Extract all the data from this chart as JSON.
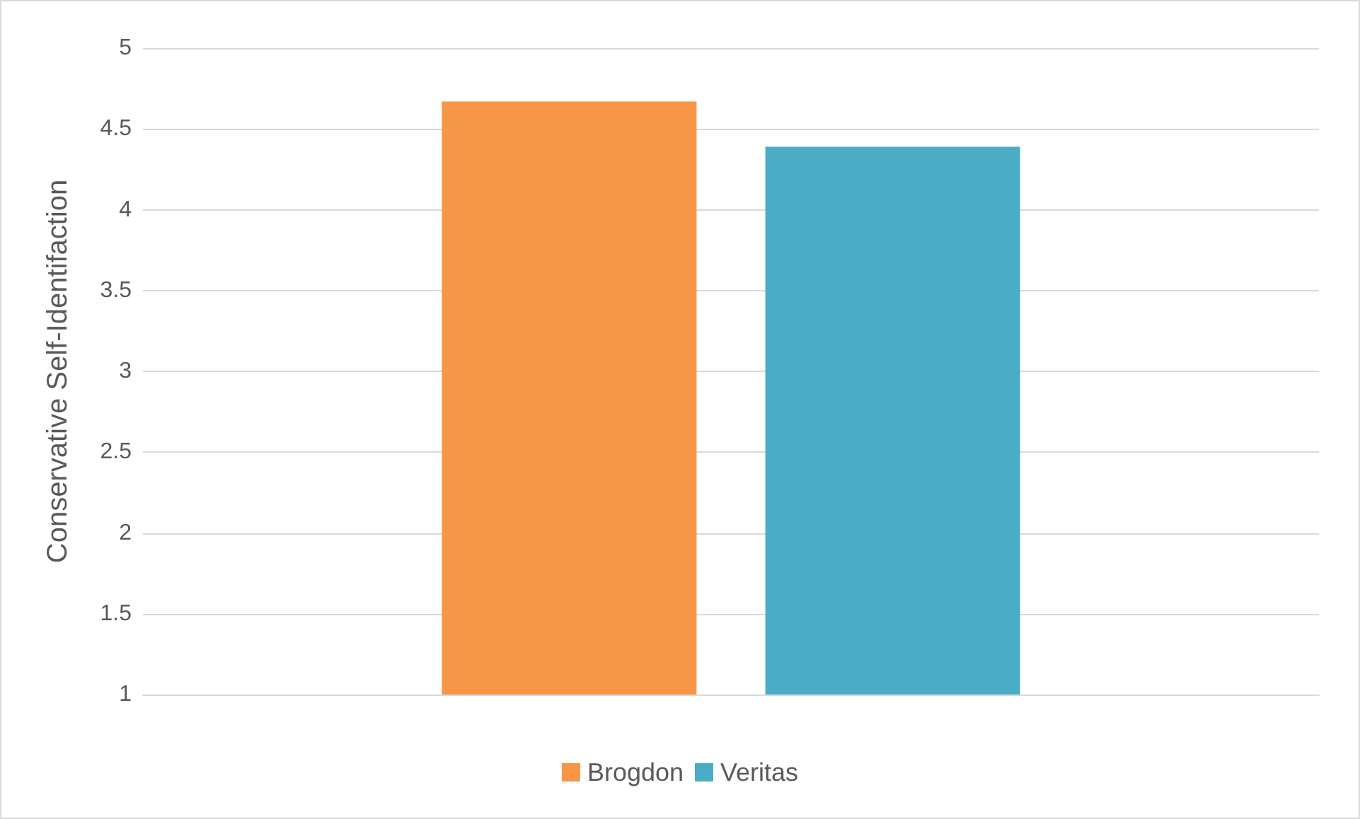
{
  "chart_data": {
    "type": "bar",
    "ylabel": "Conservative Self-Identifaction",
    "categories": [
      null
    ],
    "series": [
      {
        "name": "Brogdon",
        "color": "#f79646",
        "values": [
          4.67
        ]
      },
      {
        "name": "Veritas",
        "color": "#4bacc6",
        "values": [
          4.39
        ]
      }
    ],
    "ylim": [
      1,
      5
    ],
    "yticks": [
      1,
      1.5,
      2,
      2.5,
      3,
      3.5,
      4,
      4.5,
      5
    ],
    "grid": "y",
    "legend": "bottom"
  }
}
